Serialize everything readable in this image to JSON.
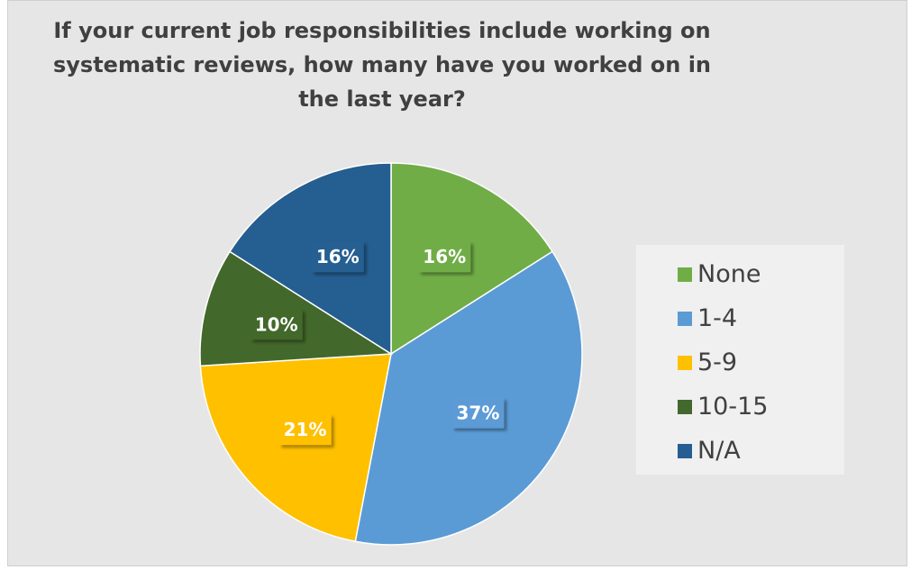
{
  "chart_data": {
    "type": "pie",
    "title": "If your current job responsibilities include working on\nsystematic reviews, how many have you worked on in\nthe last year?",
    "slices": [
      {
        "name": "None",
        "value": 16,
        "label": "16%",
        "color": "#70ad47"
      },
      {
        "name": "1-4",
        "value": 37,
        "label": "37%",
        "color": "#5b9bd5"
      },
      {
        "name": "5-9",
        "value": 21,
        "label": "21%",
        "color": "#ffc000"
      },
      {
        "name": "10-15",
        "value": 10,
        "label": "10%",
        "color": "#43682b"
      },
      {
        "name": "N/A",
        "value": 16,
        "label": "16%",
        "color": "#255e91"
      }
    ],
    "legend_position": "right"
  }
}
